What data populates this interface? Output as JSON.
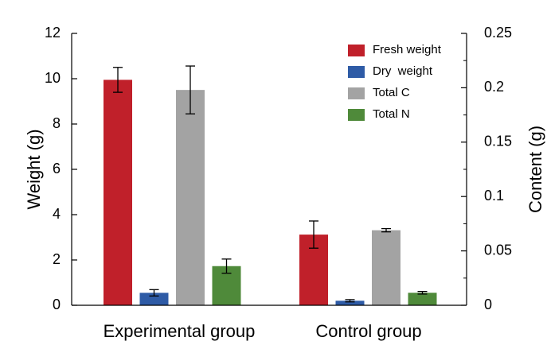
{
  "chart_data": {
    "type": "bar",
    "categories": [
      "Experimental group",
      "Control group"
    ],
    "series": [
      {
        "name": "Fresh weight",
        "color": "#c0202a",
        "axis": "left",
        "values": [
          9.95,
          3.12
        ],
        "errors": [
          0.55,
          0.6
        ]
      },
      {
        "name": "Dry  weight",
        "color": "#2e5ba6",
        "axis": "left",
        "values": [
          0.55,
          0.2
        ],
        "errors": [
          0.14,
          0.05
        ]
      },
      {
        "name": "Total C",
        "color": "#a3a3a3",
        "axis": "right",
        "values": [
          0.198,
          0.069
        ],
        "errors": [
          0.022,
          0.0015
        ]
      },
      {
        "name": "Total N",
        "color": "#4f8a3a",
        "axis": "right",
        "values": [
          0.036,
          0.0115
        ],
        "errors": [
          0.0065,
          0.0012
        ]
      }
    ],
    "ylabel": "Weight (g)",
    "y2label": "Content (g)",
    "ylim": [
      0,
      12
    ],
    "y2lim": [
      0,
      0.25
    ],
    "yticks": [
      "0",
      "2",
      "4",
      "6",
      "8",
      "10",
      "12"
    ],
    "y2ticks": [
      "0",
      "0.05",
      "0.1",
      "0.15",
      "0.2",
      "0.25"
    ],
    "legend_position": "top-right",
    "grid": false
  }
}
